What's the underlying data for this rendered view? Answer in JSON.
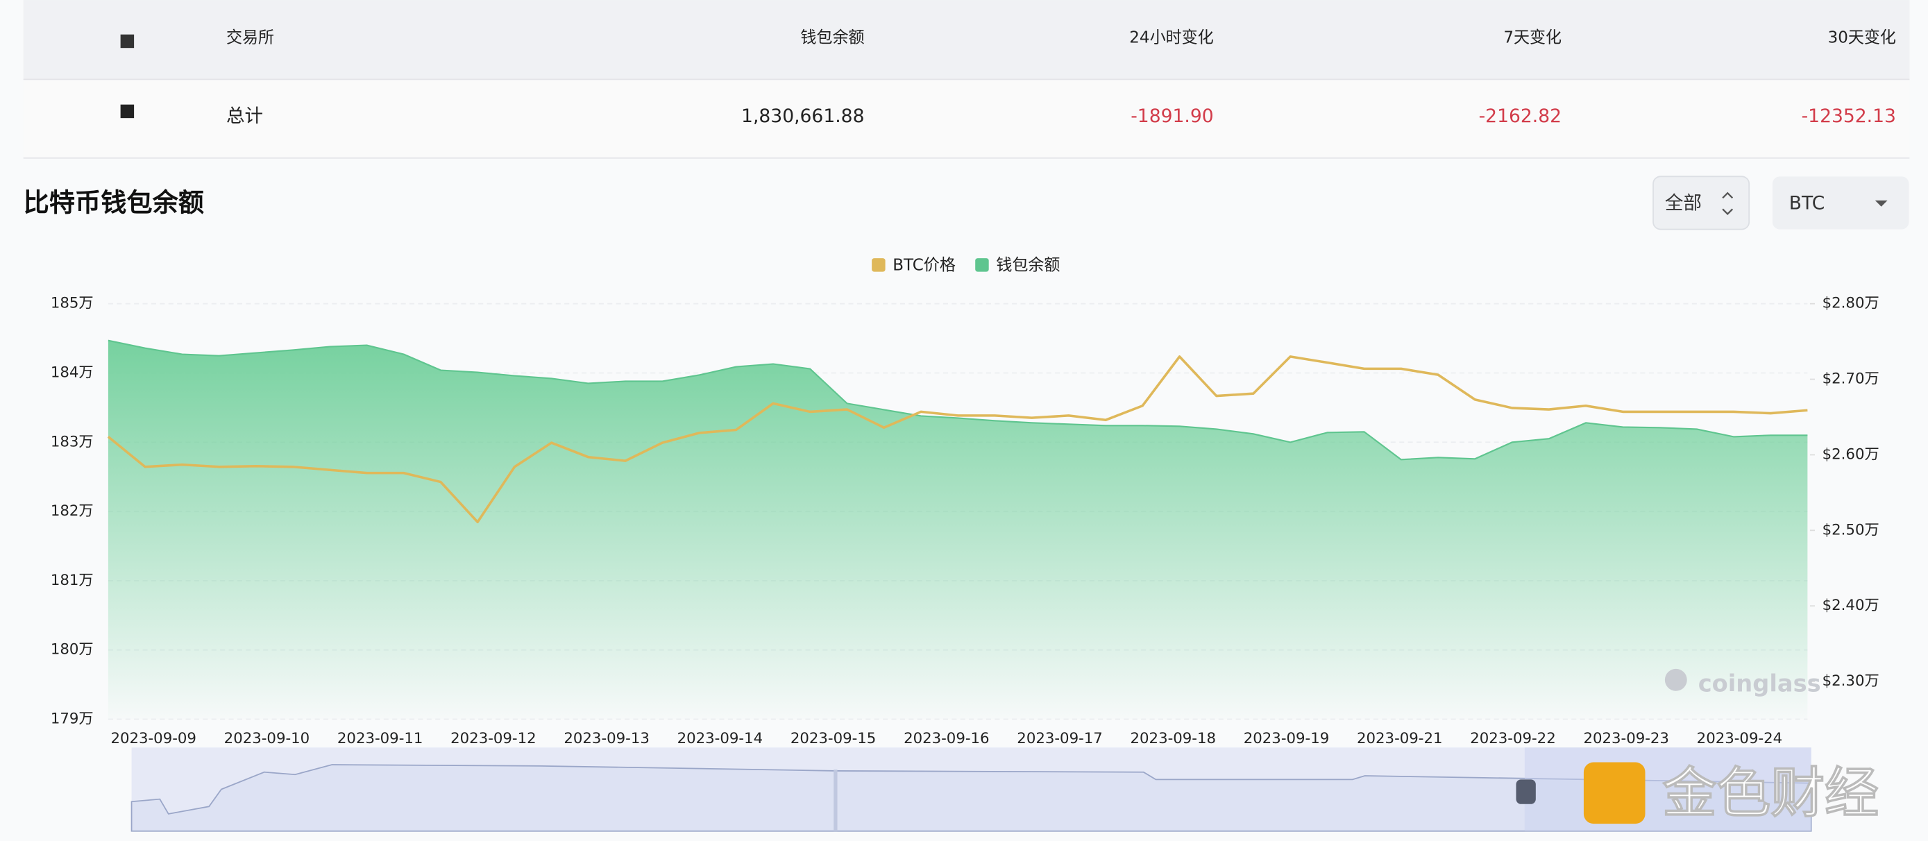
{
  "table": {
    "header": {
      "exchange": "交易所",
      "balance": "钱包余额",
      "change_24h": "24小时变化",
      "change_7d": "7天变化",
      "change_30d": "30天变化"
    },
    "rows": [
      [
        "总计",
        "1,830,661.88",
        "-1891.90",
        "-2162.82",
        "-12352.13"
      ]
    ]
  },
  "controls": {
    "range": "全部",
    "coin": "BTC"
  },
  "watermarks": [
    "coinglass",
    "金色财经"
  ],
  "chart_data": {
    "type": "line",
    "title": "比特币钱包余额",
    "xticks": [
      "2023-09-09",
      "2023-09-10",
      "2023-09-11",
      "2023-09-12",
      "2023-09-13",
      "2023-09-14",
      "2023-09-15",
      "2023-09-16",
      "2023-09-17",
      "2023-09-18",
      "2023-09-19",
      "2023-09-21",
      "2023-09-22",
      "2023-09-23",
      "2023-09-24"
    ],
    "ylim": [
      179,
      185
    ],
    "yticks": [
      {
        "value": 185,
        "label": "185万"
      },
      {
        "value": 184,
        "label": "184万"
      },
      {
        "value": 183,
        "label": "183万"
      },
      {
        "value": 182,
        "label": "182万"
      },
      {
        "value": 181,
        "label": "181万"
      },
      {
        "value": 180,
        "label": "180万"
      },
      {
        "value": 179,
        "label": "179万"
      }
    ],
    "y2lim": [
      2.25,
      2.8
    ],
    "y2ticks": [
      {
        "value": 2.8,
        "label": "$2.80万"
      },
      {
        "value": 2.7,
        "label": "$2.70万"
      },
      {
        "value": 2.6,
        "label": "$2.60万"
      },
      {
        "value": 2.5,
        "label": "$2.50万"
      },
      {
        "value": 2.4,
        "label": "$2.40万"
      },
      {
        "value": 2.3,
        "label": "$2.30万"
      }
    ],
    "grid": true,
    "series": [
      {
        "name": "BTC价格",
        "color": "#dfb85a",
        "axis": "y2",
        "values": [
          2.624,
          2.584,
          2.587,
          2.584,
          2.585,
          2.584,
          2.58,
          2.576,
          2.576,
          2.564,
          2.511,
          2.584,
          2.616,
          2.597,
          2.592,
          2.616,
          2.629,
          2.633,
          2.668,
          2.657,
          2.66,
          2.636,
          2.657,
          2.652,
          2.652,
          2.649,
          2.652,
          2.646,
          2.665,
          2.73,
          2.678,
          2.681,
          2.73,
          2.722,
          2.714,
          2.714,
          2.706,
          2.673,
          2.662,
          2.66,
          2.665,
          2.657,
          2.657,
          2.657,
          2.657,
          2.655,
          2.659
        ]
      },
      {
        "name": "钱包余额",
        "color": "#5fc58f",
        "values": [
          184.47,
          184.36,
          184.27,
          184.25,
          184.29,
          184.33,
          184.38,
          184.4,
          184.27,
          184.04,
          184.01,
          183.96,
          183.92,
          183.85,
          183.88,
          183.88,
          183.97,
          184.09,
          184.13,
          184.06,
          183.56,
          183.47,
          183.38,
          183.35,
          183.31,
          183.28,
          183.26,
          183.24,
          183.24,
          183.23,
          183.19,
          183.12,
          183.0,
          183.14,
          183.15,
          182.75,
          182.78,
          182.76,
          183.0,
          183.05,
          183.28,
          183.22,
          183.21,
          183.19,
          183.08,
          183.1,
          183.1
        ]
      }
    ]
  }
}
